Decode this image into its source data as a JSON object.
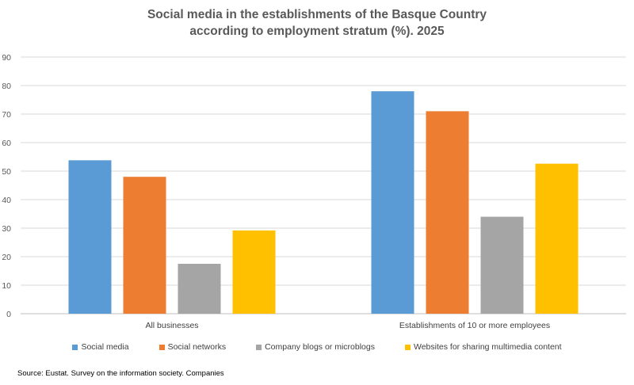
{
  "chart_data": {
    "type": "bar",
    "title_line1": "Social media in the establishments of the Basque Country",
    "title_line2": "according to employment stratum (%). 2025",
    "categories": [
      "All businesses",
      "Establishments of 10 or more employees"
    ],
    "series": [
      {
        "name": "Social media",
        "color": "#5B9BD5",
        "values": [
          53.8,
          78.0
        ]
      },
      {
        "name": "Social networks",
        "color": "#ED7D31",
        "values": [
          48.0,
          71.0
        ]
      },
      {
        "name": "Company blogs or microblogs",
        "color": "#A5A5A5",
        "values": [
          17.5,
          34.0
        ]
      },
      {
        "name": "Websites for sharing multimedia content",
        "color": "#FFC000",
        "values": [
          29.2,
          52.6
        ]
      }
    ],
    "ylim": [
      0,
      90
    ],
    "yticks": [
      0,
      10,
      20,
      30,
      40,
      50,
      60,
      70,
      80,
      90
    ],
    "grid": true,
    "legend_position": "bottom",
    "source": "Source: Eustat. Survey on the information society. Companies"
  }
}
